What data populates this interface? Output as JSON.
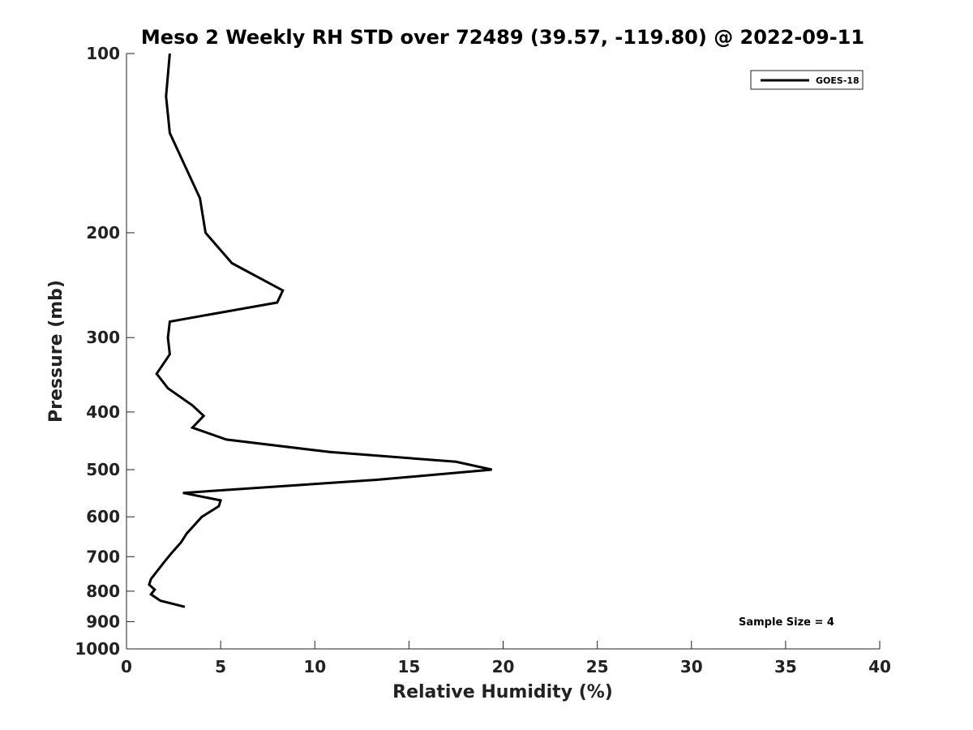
{
  "chart_data": {
    "type": "line",
    "title": "Meso 2 Weekly RH STD over 72489 (39.57, -119.80) @ 2022-09-11",
    "xlabel": "Relative Humidity (%)",
    "ylabel": "Pressure (mb)",
    "xlim": [
      0,
      40
    ],
    "ylim": [
      100,
      1000
    ],
    "yscale": "log",
    "y_reversed": true,
    "xticks": [
      0,
      5,
      10,
      15,
      20,
      25,
      30,
      35,
      40
    ],
    "yticks": [
      100,
      200,
      300,
      400,
      500,
      600,
      700,
      800,
      900,
      1000
    ],
    "grid": false,
    "legend_position": "top-right",
    "annotation": "Sample Size = 4",
    "series": [
      {
        "name": "GOES-18",
        "color": "#000000",
        "points": [
          [
            2.3,
            100
          ],
          [
            2.1,
            118
          ],
          [
            2.3,
            136
          ],
          [
            3.9,
            175
          ],
          [
            4.2,
            200
          ],
          [
            5.6,
            225
          ],
          [
            8.3,
            250
          ],
          [
            8.0,
            262
          ],
          [
            2.3,
            282
          ],
          [
            2.2,
            300
          ],
          [
            2.3,
            320
          ],
          [
            1.6,
            345
          ],
          [
            2.2,
            365
          ],
          [
            3.5,
            390
          ],
          [
            4.1,
            406
          ],
          [
            3.5,
            425
          ],
          [
            5.3,
            445
          ],
          [
            10.8,
            467
          ],
          [
            17.5,
            485
          ],
          [
            19.4,
            500
          ],
          [
            13.3,
            520
          ],
          [
            3.0,
            547
          ],
          [
            5.0,
            563
          ],
          [
            4.9,
            576
          ],
          [
            4.0,
            600
          ],
          [
            3.2,
            640
          ],
          [
            2.9,
            662
          ],
          [
            2.4,
            690
          ],
          [
            2.0,
            715
          ],
          [
            1.3,
            763
          ],
          [
            1.2,
            780
          ],
          [
            1.5,
            795
          ],
          [
            1.3,
            810
          ],
          [
            1.8,
            830
          ],
          [
            3.1,
            850
          ]
        ]
      }
    ]
  }
}
